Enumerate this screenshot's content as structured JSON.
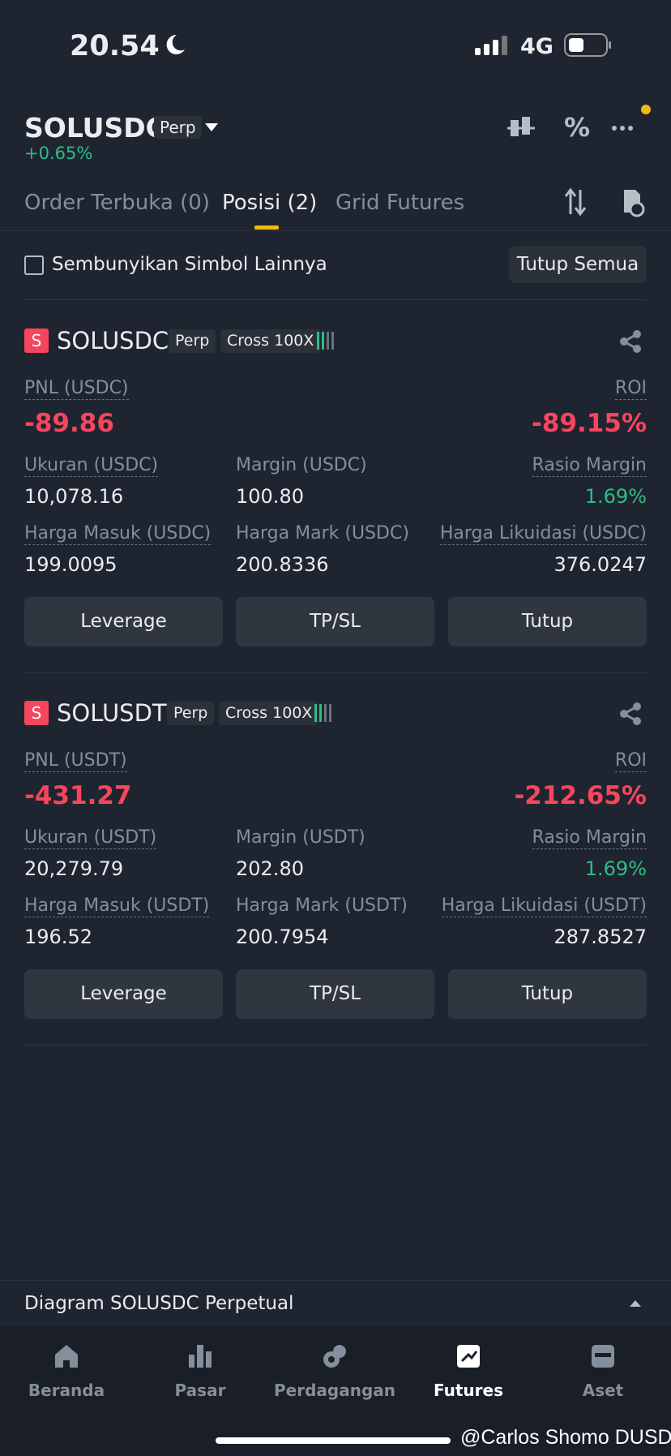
{
  "status": {
    "time": "20.54",
    "network": "4G"
  },
  "header": {
    "symbol": "SOLUSDC",
    "tag": "Perp",
    "change": "+0.65%"
  },
  "tabs": [
    "Order Terbuka (0)",
    "Posisi (2)",
    "Grid Futures"
  ],
  "filter": {
    "checkbox_label": "Sembunyikan Simbol Lainnya",
    "button": "Tutup Semua"
  },
  "positions": [
    {
      "icon": "S",
      "symbol": "SOLUSDC",
      "tags": [
        "Perp",
        "Cross 100X"
      ],
      "pnl_label": "PNL (USDC)",
      "pnl": "-89.86",
      "roi_label": "ROI",
      "roi": "-89.15%",
      "fields": [
        {
          "label": "Ukuran (USDC)",
          "value": "10,078.16"
        },
        {
          "label": "Margin (USDC)",
          "value": "100.80"
        },
        {
          "label": "Rasio Margin",
          "value": "1.69%"
        },
        {
          "label": "Harga Masuk (USDC)",
          "value": "199.0095"
        },
        {
          "label": "Harga Mark (USDC)",
          "value": "200.8336"
        },
        {
          "label": "Harga Likuidasi (USDC)",
          "value": "376.0247"
        }
      ],
      "buttons": [
        "Leverage",
        "TP/SL",
        "Tutup"
      ]
    },
    {
      "icon": "S",
      "symbol": "SOLUSDT",
      "tags": [
        "Perp",
        "Cross 100X"
      ],
      "pnl_label": "PNL (USDT)",
      "pnl": "-431.27",
      "roi_label": "ROI",
      "roi": "-212.65%",
      "fields": [
        {
          "label": "Ukuran (USDT)",
          "value": "20,279.79"
        },
        {
          "label": "Margin (USDT)",
          "value": "202.80"
        },
        {
          "label": "Rasio Margin",
          "value": "1.69%"
        },
        {
          "label": "Harga Masuk (USDT)",
          "value": "196.52"
        },
        {
          "label": "Harga Mark (USDT)",
          "value": "200.7954"
        },
        {
          "label": "Harga Likuidasi (USDT)",
          "value": "287.8527"
        }
      ],
      "buttons": [
        "Leverage",
        "TP/SL",
        "Tutup"
      ]
    }
  ],
  "chart_bar": {
    "label": "Diagram SOLUSDC Perpetual"
  },
  "nav": [
    "Beranda",
    "Pasar",
    "Perdagangan",
    "Futures",
    "Aset"
  ],
  "watermark": "@Carlos Shomo DUSD"
}
